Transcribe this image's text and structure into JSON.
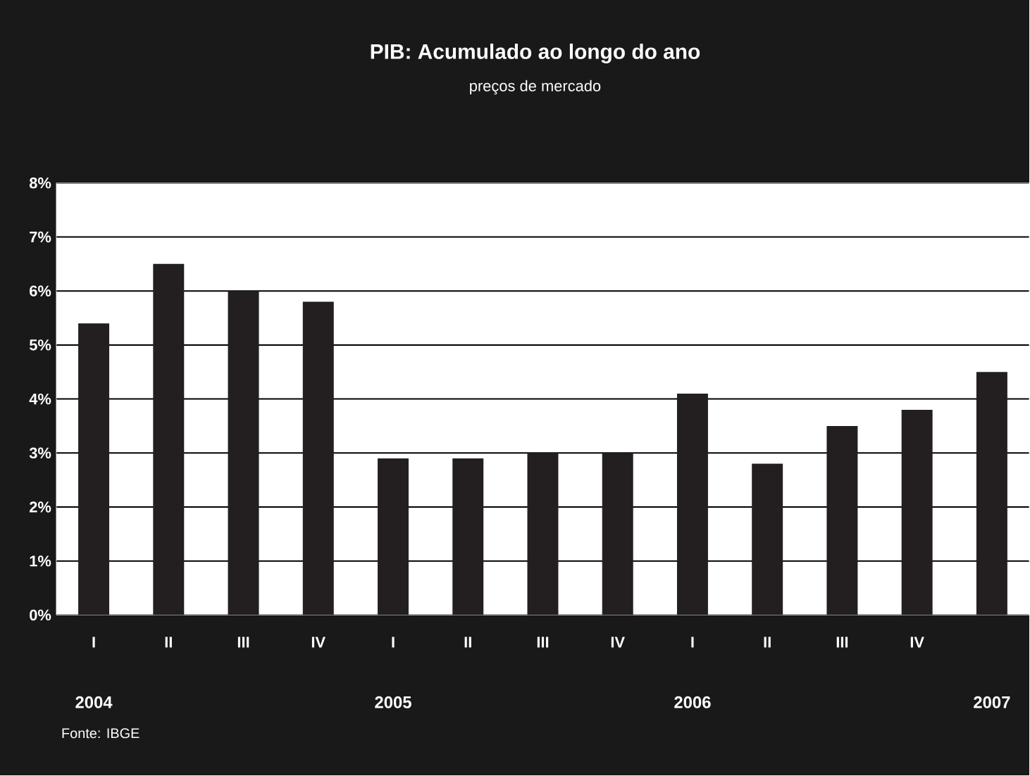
{
  "chart_data": {
    "type": "bar",
    "title": "PIB: Acumulado ao longo do ano",
    "subtitle": "preços de mercado",
    "categories": [
      "I",
      "II",
      "III",
      "IV",
      "I",
      "II",
      "III",
      "IV",
      "I",
      "II",
      "III",
      "IV",
      null
    ],
    "values": [
      5.4,
      6.5,
      6.0,
      5.8,
      2.9,
      2.9,
      3.0,
      3.0,
      4.1,
      2.8,
      3.5,
      3.8,
      4.5
    ],
    "color": "#231f20",
    "ylim": [
      0,
      8
    ],
    "yticks": [
      {
        "value": 0,
        "label": "0%"
      },
      {
        "value": 1,
        "label": "1%"
      },
      {
        "value": 2,
        "label": "2%"
      },
      {
        "value": 3,
        "label": "3%"
      },
      {
        "value": 4,
        "label": "4%"
      },
      {
        "value": 5,
        "label": "5%"
      },
      {
        "value": 6,
        "label": "6%"
      },
      {
        "value": 7,
        "label": "7%"
      },
      {
        "value": 8,
        "label": "8%"
      }
    ],
    "grid": "y",
    "annotations": [
      "2004",
      "2005",
      "2006",
      "2007",
      "Fonte: IBGE"
    ]
  }
}
